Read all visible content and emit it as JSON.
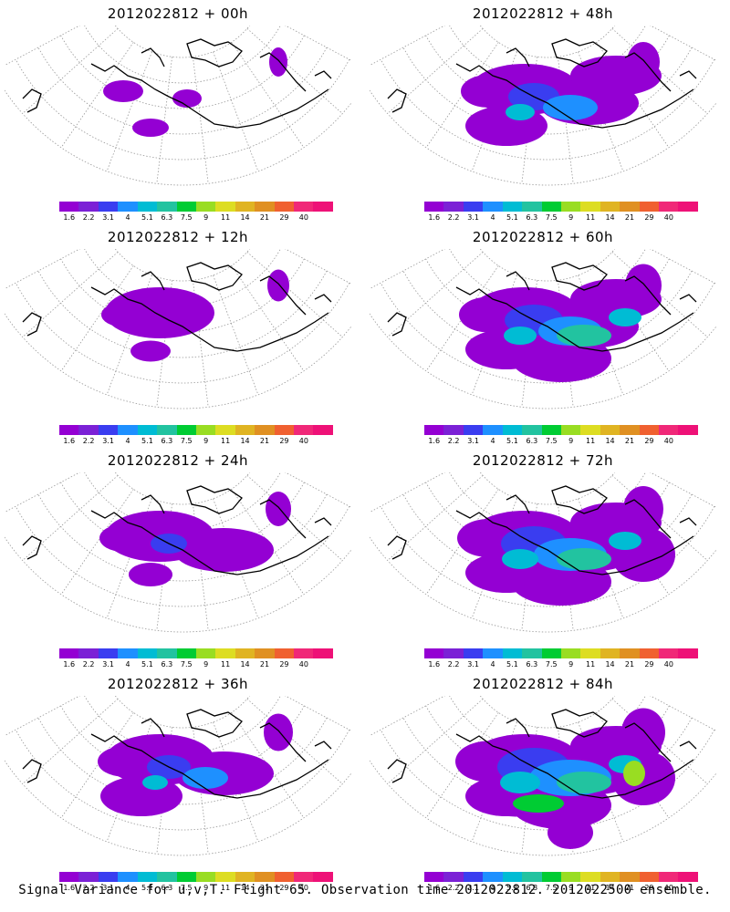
{
  "colorbar": {
    "colors": [
      "#9400d3",
      "#7b21d6",
      "#3a3df0",
      "#1e90ff",
      "#00bcd4",
      "#22c3a0",
      "#00cc33",
      "#99dd22",
      "#dddd22",
      "#e0b422",
      "#e09022",
      "#f06030",
      "#f02878",
      "#ee1177"
    ],
    "labels": [
      "1.6",
      "2.2",
      "3.1",
      "4",
      "5.1",
      "6.3",
      "7.5",
      "9",
      "11",
      "14",
      "21",
      "29",
      "40"
    ]
  },
  "panels": [
    {
      "title": "2012022812 + 00h",
      "intensity": 0
    },
    {
      "title": "2012022812 + 48h",
      "intensity": 4
    },
    {
      "title": "2012022812 + 12h",
      "intensity": 1
    },
    {
      "title": "2012022812 + 60h",
      "intensity": 5
    },
    {
      "title": "2012022812 + 24h",
      "intensity": 2
    },
    {
      "title": "2012022812 + 72h",
      "intensity": 6
    },
    {
      "title": "2012022812 + 36h",
      "intensity": 3
    },
    {
      "title": "2012022812 + 84h",
      "intensity": 7
    }
  ],
  "footer": "Signal Variance for u,v,T. Flight 65. Observation time 2012022812. 2012022500 ensemble."
}
